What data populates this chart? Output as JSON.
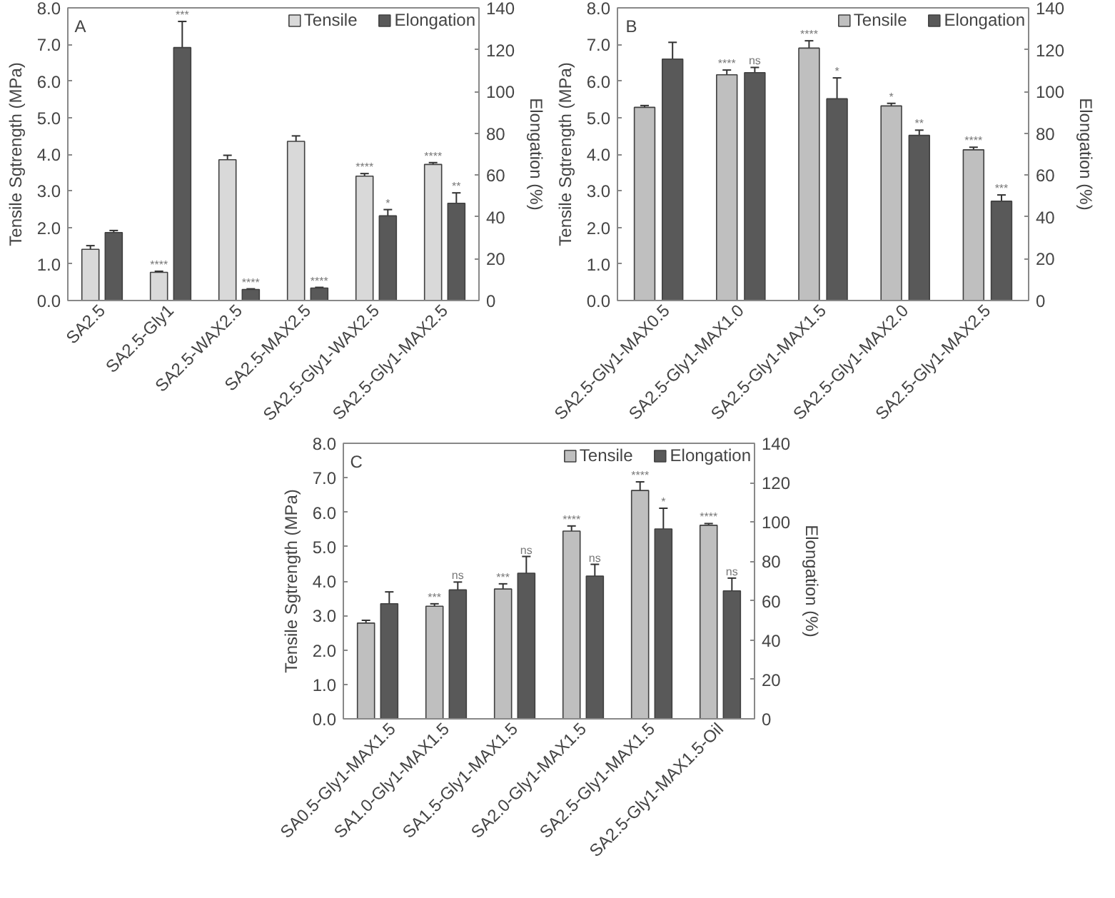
{
  "chart_data": [
    {
      "type": "bar",
      "annotations": [
        "A"
      ],
      "categories": [
        "SA2.5",
        "SA2.5-Gly1",
        "SA2.5-WAX2.5",
        "SA2.5-MAX2.5",
        "SA2.5-Gly1-WAX2.5",
        "SA2.5-Gly1-MAX2.5"
      ],
      "ylabel": "Tensile Sgtrength (MPa)",
      "y2label": "Elongation (%)",
      "ylim": [
        0,
        8
      ],
      "yticks": [
        {
          "value": 0,
          "label": "0.0"
        },
        {
          "value": 1,
          "label": "1.0"
        },
        {
          "value": 2,
          "label": "2.0"
        },
        {
          "value": 3,
          "label": "3.0"
        },
        {
          "value": 4,
          "label": "4.0"
        },
        {
          "value": 5,
          "label": "5.0"
        },
        {
          "value": 6,
          "label": "6.0"
        },
        {
          "value": 7,
          "label": "7.0"
        },
        {
          "value": 8,
          "label": "8.0"
        }
      ],
      "y2lim": [
        0,
        140
      ],
      "y2ticks": [
        0,
        20,
        40,
        60,
        80,
        100,
        120,
        140
      ],
      "grid": false,
      "legend": "top right",
      "series": [
        {
          "name": "Tensile",
          "color": "#d9d9d9",
          "values": [
            1.4,
            0.77,
            3.85,
            4.35,
            3.4,
            3.72
          ],
          "errors": [
            0.1,
            0.03,
            0.12,
            0.15,
            0.07,
            0.05
          ],
          "value_labels": [
            null,
            "****",
            null,
            null,
            "****",
            "****"
          ]
        },
        {
          "name": "Elongation",
          "color": "#595959",
          "axis": "y2",
          "values": [
            32.5,
            121,
            5.3,
            6,
            40.5,
            46.5
          ],
          "errors": [
            1,
            12.5,
            0.3,
            0.3,
            3,
            5
          ],
          "value_labels": [
            null,
            "***",
            "****",
            "****",
            "*",
            "**"
          ]
        }
      ]
    },
    {
      "type": "bar",
      "annotations": [
        "B"
      ],
      "categories": [
        "SA2.5-Gly1-MAX0.5",
        "SA2.5-Gly1-MAX1.0",
        "SA2.5-Gly1-MAX1.5",
        "SA2.5-Gly1-MAX2.0",
        "SA2.5-Gly1-MAX2.5"
      ],
      "ylabel": "Tensile Sgtrength (MPa)",
      "y2label": "Elongation (%)",
      "ylim": [
        0,
        8
      ],
      "yticks": [
        {
          "value": 0,
          "label": "0.0"
        },
        {
          "value": 1,
          "label": "1.0"
        },
        {
          "value": 2,
          "label": "2.0"
        },
        {
          "value": 3,
          "label": "3.0"
        },
        {
          "value": 4,
          "label": "4.0"
        },
        {
          "value": 5,
          "label": "5.0"
        },
        {
          "value": 6,
          "label": "6.0"
        },
        {
          "value": 7,
          "label": "7.0"
        },
        {
          "value": 8,
          "label": "8.0"
        }
      ],
      "y2lim": [
        0,
        140
      ],
      "y2ticks": [
        0,
        20,
        40,
        60,
        80,
        100,
        120,
        140
      ],
      "grid": false,
      "legend": "top right",
      "series": [
        {
          "name": "Tensile",
          "color": "#bfbfbf",
          "values": [
            5.28,
            6.17,
            6.9,
            5.32,
            4.12
          ],
          "errors": [
            0.05,
            0.13,
            0.2,
            0.07,
            0.07
          ],
          "value_labels": [
            null,
            "****",
            "****",
            "*",
            "****"
          ]
        },
        {
          "name": "Elongation",
          "color": "#595959",
          "axis": "y2",
          "values": [
            115.5,
            109,
            96.5,
            79,
            47.5
          ],
          "errors": [
            8,
            2.5,
            10,
            2.5,
            3
          ],
          "value_labels": [
            null,
            "ns",
            "*",
            "**",
            "***"
          ]
        }
      ]
    },
    {
      "type": "bar",
      "annotations": [
        "C"
      ],
      "categories": [
        "SA0.5-Gly1-MAX1.5",
        "SA1.0-Gly1-MAX1.5",
        "SA1.5-Gly1-MAX1.5",
        "SA2.0-Gly1-MAX1.5",
        "SA2.5-Gly1-MAX1.5",
        "SA2.5-Gly1-MAX1.5-Oil"
      ],
      "ylabel": "Tensile Sgtrength (MPa)",
      "y2label": "Elongation (%)",
      "ylim": [
        0,
        8
      ],
      "yticks": [
        {
          "value": 0,
          "label": "0.0"
        },
        {
          "value": 1,
          "label": "1.0"
        },
        {
          "value": 2,
          "label": "2.0"
        },
        {
          "value": 3,
          "label": "3.0"
        },
        {
          "value": 4,
          "label": "4.0"
        },
        {
          "value": 5,
          "label": "5.0"
        },
        {
          "value": 6,
          "label": "6.0"
        },
        {
          "value": 7,
          "label": "7.0"
        },
        {
          "value": 8,
          "label": "8.0"
        }
      ],
      "y2lim": [
        0,
        140
      ],
      "y2ticks": [
        0,
        20,
        40,
        60,
        80,
        100,
        120,
        140
      ],
      "grid": false,
      "legend": "top right",
      "series": [
        {
          "name": "Tensile",
          "color": "#bfbfbf",
          "values": [
            2.78,
            3.27,
            3.77,
            5.45,
            6.63,
            5.62
          ],
          "errors": [
            0.08,
            0.07,
            0.15,
            0.15,
            0.25,
            0.05
          ],
          "value_labels": [
            null,
            "***",
            "***",
            "****",
            "****",
            "****"
          ]
        },
        {
          "name": "Elongation",
          "color": "#595959",
          "axis": "y2",
          "values": [
            58.5,
            65.5,
            74,
            72.5,
            96.5,
            65
          ],
          "errors": [
            6,
            4,
            8.5,
            6,
            10.5,
            6.5
          ],
          "value_labels": [
            null,
            "ns",
            "ns",
            "ns",
            "*",
            "ns"
          ]
        }
      ]
    }
  ]
}
